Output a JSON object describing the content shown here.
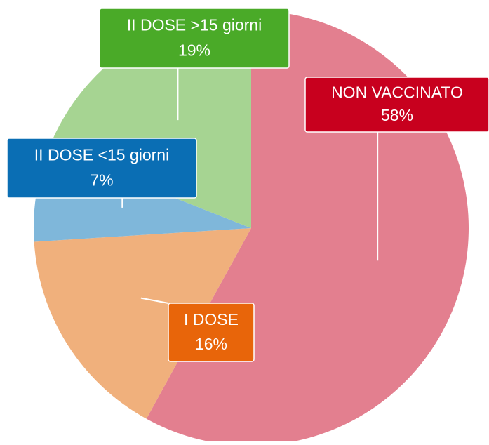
{
  "chart_data": {
    "type": "pie",
    "categories": [
      "NON VACCINATO",
      "I DOSE",
      "II DOSE <15 giorni",
      "II DOSE >15 giorni"
    ],
    "values": [
      58,
      16,
      7,
      19
    ],
    "value_labels": [
      "58%",
      "16%",
      "7%",
      "19%"
    ],
    "colors": [
      "#e37f8f",
      "#f0b07c",
      "#7fb7da",
      "#a6d492"
    ],
    "label_colors": [
      "#c8001e",
      "#e8650a",
      "#0a6eb4",
      "#4aaa28"
    ]
  }
}
